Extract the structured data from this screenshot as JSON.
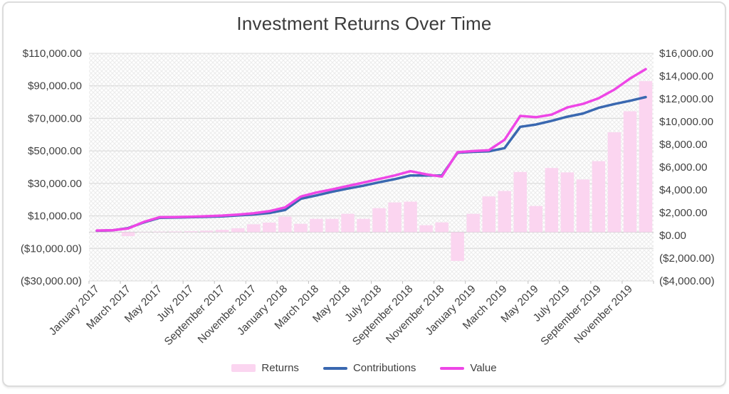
{
  "chart_data": {
    "type": "combo",
    "title": "Investment Returns Over Time",
    "legend_position": "bottom",
    "grid": true,
    "categories": [
      "January 2017",
      "February 2017",
      "March 2017",
      "April 2017",
      "May 2017",
      "June 2017",
      "July 2017",
      "August 2017",
      "September 2017",
      "October 2017",
      "November 2017",
      "December 2017",
      "January 2018",
      "February 2018",
      "March 2018",
      "April 2018",
      "May 2018",
      "June 2018",
      "July 2018",
      "August 2018",
      "September 2018",
      "October 2018",
      "November 2018",
      "December 2018",
      "January 2019",
      "February 2019",
      "March 2019",
      "April 2019",
      "May 2019",
      "June 2019",
      "July 2019",
      "August 2019",
      "September 2019",
      "October 2019",
      "November 2019",
      "December 2019"
    ],
    "x_tick_labels": [
      "January 2017",
      "March 2017",
      "May 2017",
      "July 2017",
      "September 2017",
      "November 2017",
      "January 2018",
      "March 2018",
      "May 2018",
      "July 2018",
      "September 2018",
      "November 2018",
      "January 2019",
      "March 2019",
      "May 2019",
      "July 2019",
      "September 2019",
      "November 2019"
    ],
    "series": [
      {
        "name": "Returns",
        "type": "bar",
        "axis": "right",
        "color": "#fbd5f0",
        "values": [
          10,
          25,
          -350,
          30,
          45,
          60,
          80,
          130,
          210,
          340,
          690,
          840,
          1360,
          730,
          1170,
          1170,
          1610,
          1170,
          2110,
          2610,
          2680,
          610,
          860,
          -2530,
          1610,
          3140,
          3620,
          5290,
          2300,
          5640,
          5250,
          4630,
          6240,
          8780,
          10620,
          13270
        ]
      },
      {
        "name": "Contributions",
        "type": "line",
        "axis": "left",
        "color": "#3a68b0",
        "values": [
          900,
          1100,
          2500,
          6000,
          8800,
          9000,
          9200,
          9400,
          9700,
          10300,
          10900,
          11800,
          13600,
          20500,
          22600,
          24800,
          26800,
          28600,
          30700,
          32600,
          34900,
          34900,
          34800,
          48900,
          49400,
          49700,
          51700,
          64800,
          66200,
          68500,
          71000,
          73000,
          76500,
          78800,
          80800,
          83100
        ]
      },
      {
        "name": "Value",
        "type": "line",
        "axis": "left",
        "color": "#ee46e6",
        "values": [
          1000,
          1200,
          2300,
          6300,
          9200,
          9300,
          9500,
          9800,
          10200,
          10800,
          11600,
          12900,
          15200,
          21900,
          24400,
          26300,
          28400,
          30500,
          32700,
          34900,
          37500,
          35600,
          34200,
          49200,
          49900,
          50400,
          56800,
          71500,
          70700,
          72300,
          76700,
          78900,
          82400,
          87700,
          94500,
          100300
        ]
      }
    ],
    "left_axis": {
      "min": -30000,
      "max": 110000,
      "tick_step": 20000,
      "ticks": [
        110000,
        90000,
        70000,
        50000,
        30000,
        10000,
        -10000,
        -30000
      ],
      "labels": [
        "$110,000.00",
        "$90,000.00",
        "$70,000.00",
        "$50,000.00",
        "$30,000.00",
        "$10,000.00",
        "($10,000.00)",
        "($30,000.00)"
      ]
    },
    "right_axis": {
      "min": -4000,
      "max": 16000,
      "tick_step": 2000,
      "ticks": [
        16000,
        14000,
        12000,
        10000,
        8000,
        6000,
        4000,
        2000,
        0,
        -2000,
        -4000
      ],
      "labels": [
        "$16,000.00",
        "$14,000.00",
        "$12,000.00",
        "$10,000.00",
        "$8,000.00",
        "$6,000.00",
        "$4,000.00",
        "$2,000.00",
        "$0.00",
        "($2,000.00)",
        "($4,000.00)"
      ]
    },
    "colors": {
      "grid": "#d8d8d8",
      "zero_axis": "#c6c6c6",
      "tick": "#bfbfbf",
      "axis_text": "#404040",
      "title_text": "#3b3b3b",
      "plot_hatch": "#ececec"
    }
  }
}
